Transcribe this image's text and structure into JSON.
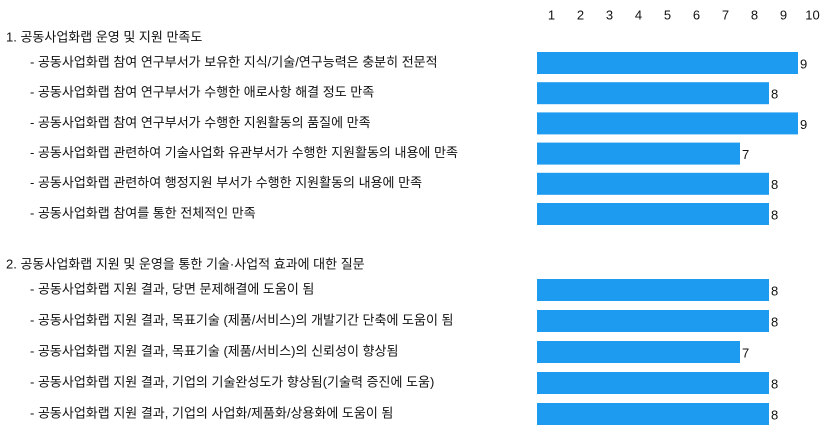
{
  "chart_data": {
    "type": "bar",
    "orientation": "horizontal",
    "color": "#1d9bf0",
    "xlim": [
      0,
      10
    ],
    "xticks": [
      1,
      2,
      3,
      4,
      5,
      6,
      7,
      8,
      9,
      10
    ],
    "groups": [
      {
        "title": "1. 공동사업화랩 운영 및 지원 만족도",
        "categories": [
          "- 공동사업화랩 참여 연구부서가 보유한 지식/기술/연구능력은 충분히 전문적",
          "- 공동사업화랩 참여 연구부서가 수행한 애로사항 해결 정도 만족",
          "- 공동사업화랩 참여 연구부서가 수행한 지원활동의 품질에 만족",
          "- 공동사업화랩 관련하여 기술사업화 유관부서가 수행한 지원활동의 내용에 만족",
          "- 공동사업화랩 관련하여 행정지원 부서가 수행한 지원활동의 내용에 만족",
          "- 공동사업화랩 참여를 통한 전체적인 만족"
        ],
        "values": [
          9,
          8,
          9,
          7,
          8,
          8
        ]
      },
      {
        "title": "2. 공동사업화랩 지원 및 운영을 통한 기술·사업적 효과에 대한 질문",
        "categories": [
          "- 공동사업화랩 지원 결과, 당면 문제해결에 도움이 됨",
          "- 공동사업화랩 지원 결과, 목표기술 (제품/서비스)의 개발기간 단축에 도움이 됨",
          "- 공동사업화랩 지원 결과, 목표기술 (제품/서비스)의 신뢰성이 향상됨",
          "- 공동사업화랩 지원 결과, 기업의 기술완성도가 향상됨(기술력 증진에 도움)",
          "- 공동사업화랩 지원 결과, 기업의 사업화/제품화/상용화에 도움이 됨"
        ],
        "values": [
          8,
          8,
          7,
          8,
          8
        ]
      }
    ]
  }
}
